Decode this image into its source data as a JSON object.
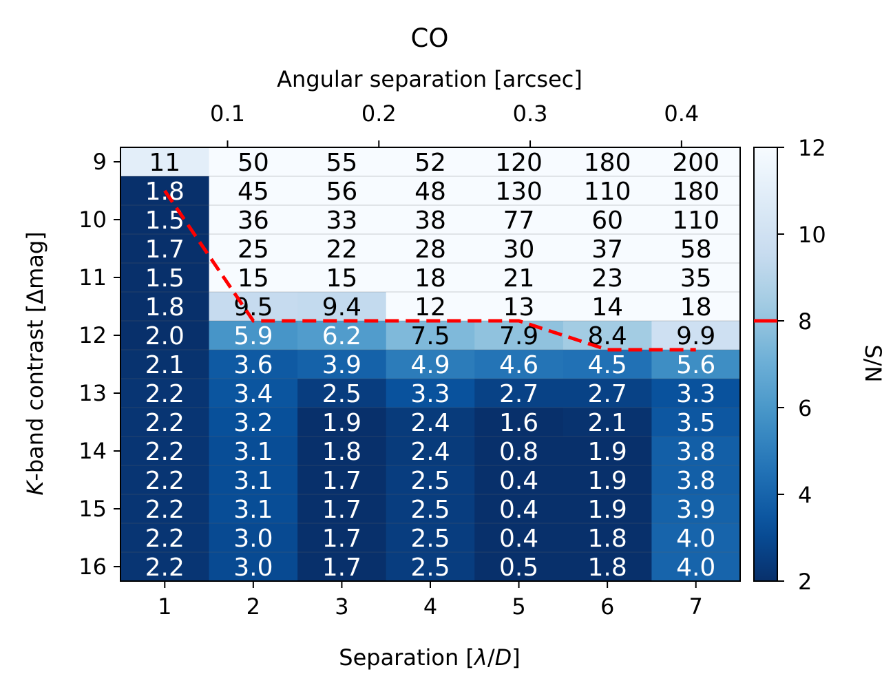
{
  "chart_data": {
    "type": "heatmap",
    "title": "CO",
    "xlabel": "Separation [λ/D]",
    "xlabel_parts": [
      "Separation [",
      "λ",
      "/",
      "D",
      "]"
    ],
    "top_xlabel": "Angular separation [arcsec]",
    "ylabel": "K-band contrast [Δmag]",
    "ylabel_parts": [
      "K",
      "-band contrast [Δmag]"
    ],
    "colorbar_label": "S/N",
    "colormap": "Blues_r",
    "x": [
      1,
      2,
      3,
      4,
      5,
      6,
      7
    ],
    "x_tick_labels": [
      "1",
      "2",
      "3",
      "4",
      "5",
      "6",
      "7"
    ],
    "y": [
      9,
      9.5,
      10,
      10.5,
      11,
      11.5,
      12,
      12.5,
      13,
      13.5,
      14,
      14.5,
      15,
      15.5,
      16
    ],
    "y_ticks": [
      9,
      10,
      11,
      12,
      13,
      14,
      15,
      16
    ],
    "y_tick_labels": [
      "9",
      "10",
      "11",
      "12",
      "13",
      "14",
      "15",
      "16"
    ],
    "top_x_ticks_arcsec": [
      0.1,
      0.2,
      0.3,
      0.4
    ],
    "top_x_tick_labels": [
      "0.1",
      "0.2",
      "0.3",
      "0.4"
    ],
    "arcsec_per_lambda_over_d": 0.0585,
    "clim": [
      2,
      12
    ],
    "colorbar_ticks": [
      2,
      4,
      6,
      8,
      10,
      12
    ],
    "colorbar_tick_labels": [
      "2",
      "4",
      "6",
      "8",
      "10",
      "12"
    ],
    "threshold": 8,
    "threshold_color": "#ff0000",
    "values": [
      [
        "11",
        "50",
        "55",
        "52",
        "120",
        "180",
        "200"
      ],
      [
        "1.8",
        "45",
        "56",
        "48",
        "130",
        "110",
        "180"
      ],
      [
        "1.5",
        "36",
        "33",
        "38",
        "77",
        "60",
        "110"
      ],
      [
        "1.7",
        "25",
        "22",
        "28",
        "30",
        "37",
        "58"
      ],
      [
        "1.5",
        "15",
        "15",
        "18",
        "21",
        "23",
        "35"
      ],
      [
        "1.8",
        "9.5",
        "9.4",
        "12",
        "13",
        "14",
        "18"
      ],
      [
        "2.0",
        "5.9",
        "6.2",
        "7.5",
        "7.9",
        "8.4",
        "9.9"
      ],
      [
        "2.1",
        "3.6",
        "3.9",
        "4.9",
        "4.6",
        "4.5",
        "5.6"
      ],
      [
        "2.2",
        "3.4",
        "2.5",
        "3.3",
        "2.7",
        "2.7",
        "3.3"
      ],
      [
        "2.2",
        "3.2",
        "1.9",
        "2.4",
        "1.6",
        "2.1",
        "3.5"
      ],
      [
        "2.2",
        "3.1",
        "1.8",
        "2.4",
        "0.8",
        "1.9",
        "3.8"
      ],
      [
        "2.2",
        "3.1",
        "1.7",
        "2.5",
        "0.4",
        "1.9",
        "3.8"
      ],
      [
        "2.2",
        "3.1",
        "1.7",
        "2.5",
        "0.4",
        "1.9",
        "3.9"
      ],
      [
        "2.2",
        "3.0",
        "1.7",
        "2.5",
        "0.4",
        "1.8",
        "4.0"
      ],
      [
        "2.2",
        "3.0",
        "1.7",
        "2.5",
        "0.5",
        "1.8",
        "4.0"
      ]
    ],
    "threshold_line": {
      "x": [
        1,
        2,
        3,
        4,
        5,
        6,
        7
      ],
      "y": [
        9.5,
        11.75,
        11.75,
        11.75,
        11.75,
        12.25,
        12.25
      ],
      "style": "dashed"
    }
  }
}
